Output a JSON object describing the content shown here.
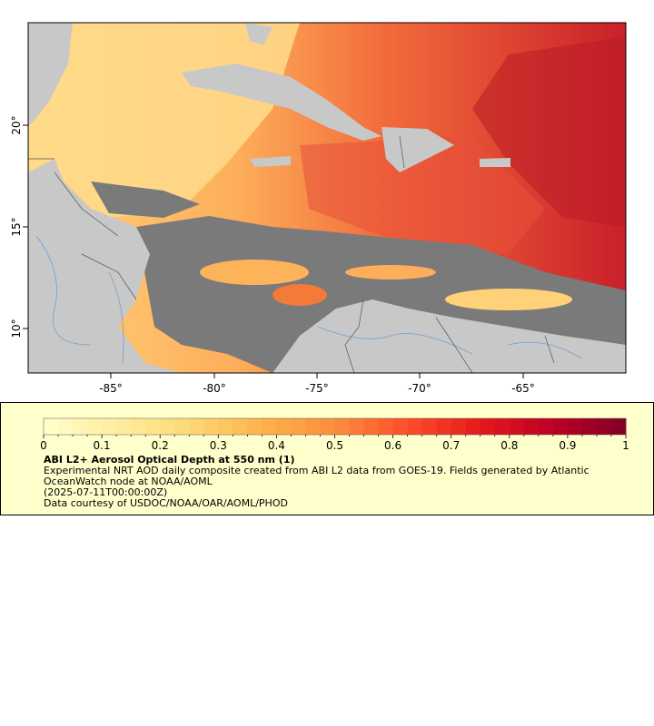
{
  "map": {
    "lon_ticks": [
      "-85°",
      "-80°",
      "-75°",
      "-70°",
      "-65°"
    ],
    "lat_ticks": [
      "20°",
      "15°",
      "10°"
    ],
    "colors": {
      "ocean_nodata": "#7a7a7a",
      "land": "#c8c8c8",
      "borders": "#6b6b6b",
      "rivers": "#6f9fd0"
    }
  },
  "legend": {
    "colorbar_ticks": [
      "0",
      "0.1",
      "0.2",
      "0.3",
      "0.4",
      "0.5",
      "0.6",
      "0.7",
      "0.8",
      "0.9",
      "1"
    ],
    "colorscale": [
      "#ffffcc",
      "#ffeda0",
      "#fed976",
      "#feb24c",
      "#fd8d3c",
      "#fc4e2a",
      "#e31a1c",
      "#bd0026",
      "#800026"
    ],
    "title": "ABI L2+ Aerosol Optical Depth at 550 nm (1)",
    "lines": [
      "Experimental NRT AOD daily composite created from ABI L2 data from GOES-19. Fields generated by Atlantic OceanWatch node at NOAA/AOML",
      "(2025-07-11T00:00:00Z)",
      "Data courtesy of USDOC/NOAA/OAR/AOML/PHOD"
    ]
  }
}
